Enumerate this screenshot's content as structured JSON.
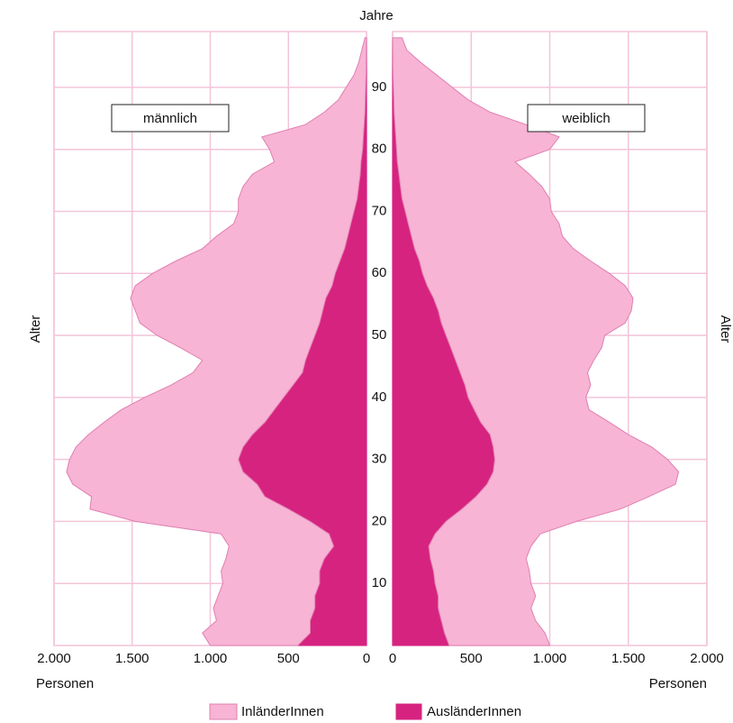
{
  "age_axis": {
    "title": "Jahre",
    "ylim": [
      0,
      99
    ],
    "ticks": [
      10,
      20,
      30,
      40,
      50,
      60,
      70,
      80,
      90
    ]
  },
  "chart_data": [
    {
      "type": "area",
      "title": "männlich",
      "xlabel": "Personen",
      "ylabel": "Alter",
      "xlim": [
        2000,
        0
      ],
      "xticks": [
        {
          "value": 2000,
          "label": "2.000"
        },
        {
          "value": 1500,
          "label": "1.500"
        },
        {
          "value": 1000,
          "label": "1.000"
        },
        500,
        0
      ],
      "grid": true,
      "x": [
        0,
        2,
        4,
        6,
        8,
        10,
        12,
        14,
        16,
        18,
        20,
        22,
        24,
        26,
        28,
        30,
        32,
        34,
        36,
        38,
        40,
        42,
        44,
        46,
        48,
        50,
        52,
        54,
        56,
        58,
        60,
        62,
        64,
        66,
        68,
        70,
        72,
        74,
        76,
        78,
        80,
        82,
        84,
        86,
        88,
        90,
        92,
        94,
        96,
        98
      ],
      "series": [
        {
          "name": "AusländerInnen",
          "color": "#d6237f",
          "values": [
            440,
            360,
            360,
            330,
            330,
            300,
            300,
            270,
            210,
            240,
            360,
            500,
            650,
            700,
            790,
            820,
            790,
            730,
            650,
            590,
            530,
            470,
            410,
            390,
            360,
            330,
            300,
            280,
            260,
            220,
            200,
            170,
            140,
            120,
            100,
            80,
            60,
            50,
            40,
            35,
            25,
            20,
            15,
            10,
            8,
            5,
            3,
            2,
            1,
            0
          ]
        },
        {
          "name": "InländerInnen",
          "color": "#f7b4d4",
          "values": [
            560,
            690,
            600,
            650,
            620,
            620,
            630,
            630,
            670,
            690,
            1120,
            1270,
            1110,
            1180,
            1130,
            1080,
            1070,
            1050,
            1030,
            980,
            890,
            780,
            700,
            660,
            830,
            1010,
            1150,
            1200,
            1250,
            1260,
            1170,
            1050,
            910,
            840,
            750,
            740,
            760,
            740,
            690,
            555,
            595,
            650,
            375,
            260,
            172,
            125,
            77,
            48,
            29,
            10
          ]
        }
      ]
    },
    {
      "type": "area",
      "title": "weiblich",
      "xlabel": "Personen",
      "ylabel": "Alter",
      "xlim": [
        0,
        2000
      ],
      "xticks": [
        0,
        500,
        {
          "value": 1000,
          "label": "1.000"
        },
        {
          "value": 1500,
          "label": "1.500"
        },
        {
          "value": 2000,
          "label": "2.000"
        }
      ],
      "grid": true,
      "x": [
        0,
        2,
        4,
        6,
        8,
        10,
        12,
        14,
        16,
        18,
        20,
        22,
        24,
        26,
        28,
        30,
        32,
        34,
        36,
        38,
        40,
        42,
        44,
        46,
        48,
        50,
        52,
        54,
        56,
        58,
        60,
        62,
        64,
        66,
        68,
        70,
        72,
        74,
        76,
        78,
        80,
        82,
        84,
        86,
        88,
        90,
        92,
        94,
        96,
        98
      ],
      "series": [
        {
          "name": "AusländerInnen",
          "color": "#d6237f",
          "values": [
            360,
            330,
            310,
            290,
            290,
            270,
            260,
            240,
            230,
            270,
            340,
            440,
            530,
            600,
            640,
            650,
            640,
            620,
            560,
            520,
            480,
            460,
            430,
            400,
            370,
            340,
            310,
            290,
            260,
            220,
            190,
            170,
            140,
            120,
            100,
            80,
            60,
            50,
            40,
            30,
            25,
            20,
            15,
            10,
            8,
            5,
            3,
            2,
            1,
            0
          ]
        },
        {
          "name": "InländerInnen",
          "color": "#f7b4d4",
          "values": [
            640,
            640,
            600,
            590,
            620,
            610,
            610,
            610,
            650,
            670,
            830,
            1010,
            1100,
            1200,
            1180,
            1100,
            1010,
            880,
            820,
            730,
            750,
            800,
            810,
            880,
            960,
            1010,
            1170,
            1230,
            1270,
            1260,
            1190,
            1090,
            1010,
            960,
            960,
            930,
            940,
            900,
            830,
            750,
            975,
            1040,
            835,
            610,
            472,
            375,
            277,
            178,
            89,
            60
          ]
        }
      ]
    }
  ]
}
